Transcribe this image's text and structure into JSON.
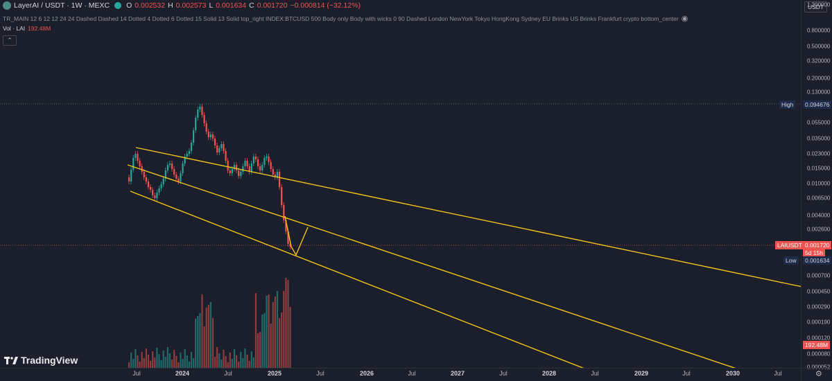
{
  "legend": {
    "symbol": "LayerAI / USDT · 1W · MEXC",
    "open_key": "O",
    "open": "0.002532",
    "high_key": "H",
    "high": "0.002573",
    "low_key": "L",
    "low": "0.001634",
    "close_key": "C",
    "close": "0.001720",
    "change": "−0.000814 (−32.12%)",
    "indicator": "TR_MAIN 12 6 12 12 24 24 Dashed Dashed 14 Dotted 4 Dotted 6 Dotted 15 Solid 13 Solid top_right INDEX:BTCUSD 500 Body only Body with wicks 0 90 Dashed London NewYork Tokyo HongKong Sydney EU Brinks US Brinks Frankfurt crypto bottom_center",
    "vol_label": "Vol · LAI",
    "vol_value": "192.48M",
    "collapse_glyph": "⌃"
  },
  "price_scale": {
    "currency": "USDT",
    "ticks": [
      "1.200000",
      "0.800000",
      "0.500000",
      "0.320000",
      "0.200000",
      "0.130000",
      "0.055000",
      "0.035000",
      "0.023000",
      "0.015000",
      "0.010000",
      "0.006500",
      "0.004000",
      "0.002600",
      "0.000700",
      "0.000450",
      "0.000290",
      "0.000190",
      "0.000120",
      "0.000080",
      "0.000052"
    ],
    "high_label": "High",
    "high_value": "0.094676",
    "last_label": "LAIUSDT",
    "last_value": "0.001720",
    "countdown": "5d 15h",
    "low_label": "Low",
    "low_value": "0.001634",
    "vol_tag": "192.48M"
  },
  "time_scale": [
    "Jul",
    "2024",
    "Jul",
    "2025",
    "Jul",
    "2026",
    "Jul",
    "2027",
    "Jul",
    "2028",
    "Jul",
    "2029",
    "Jul",
    "2030",
    "Jul"
  ],
  "branding": {
    "logo_text": "TradingView"
  },
  "colors": {
    "up": "#26a69a",
    "down": "#ef5350",
    "trendline": "#f5c518",
    "background": "#1b1f2b"
  }
}
